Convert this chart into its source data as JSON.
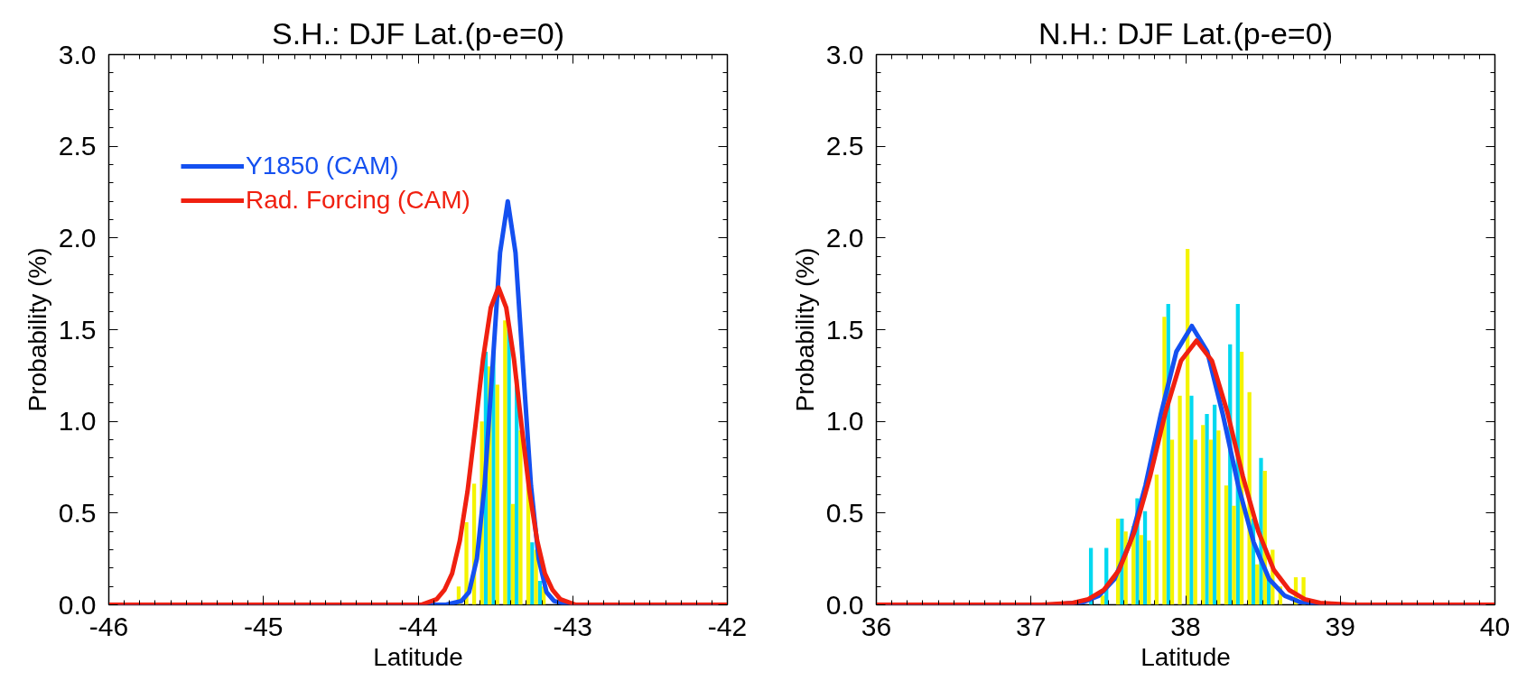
{
  "chart_data": [
    {
      "type": "histogram",
      "title": "S.H.: DJF Lat.(p-e=0)",
      "xlabel": "Latitude",
      "ylabel": "Probability (%)",
      "xlim": [
        -46,
        -42
      ],
      "ylim": [
        0,
        3
      ],
      "xticks": [
        -46,
        -45,
        -44,
        -43,
        -42
      ],
      "yticks": [
        {
          "value": 0,
          "label": "0.0"
        },
        {
          "value": 0.5,
          "label": "0.5"
        },
        {
          "value": 1,
          "label": "1.0"
        },
        {
          "value": 1.5,
          "label": "1.5"
        },
        {
          "value": 2,
          "label": "2.0"
        },
        {
          "value": 2.5,
          "label": "2.5"
        },
        {
          "value": 3,
          "label": "3.0"
        }
      ],
      "grid": false,
      "legend": "top left",
      "bins": [
        -43.775,
        -43.725,
        -43.675,
        -43.625,
        -43.575,
        -43.525,
        -43.475,
        -43.425,
        -43.375,
        -43.325,
        -43.275,
        -43.225,
        -43.175
      ],
      "series": [
        {
          "color": "#00d8f0",
          "values": [
            null,
            null,
            null,
            null,
            1.38,
            1.38,
            null,
            1.5,
            1.23,
            null,
            0.34,
            0.13
          ]
        },
        {
          "color": "#f4f400",
          "values": [
            0.1,
            0.45,
            0.66,
            1.0,
            1.3,
            1.2,
            1.55,
            0.55,
            0.95,
            0.7,
            0.3,
            0.1
          ]
        },
        {
          "type": "line",
          "name": "Y1850 (CAM)",
          "color": "#1450f0",
          "x": [
            -46,
            -43.82,
            -43.72,
            -43.67,
            -43.62,
            -43.57,
            -43.52,
            -43.47,
            -43.42,
            -43.37,
            -43.32,
            -43.27,
            -43.22,
            -43.17,
            -43.12,
            -43.02,
            -42
          ],
          "values": [
            0,
            0,
            0.02,
            0.07,
            0.25,
            0.65,
            1.28,
            1.92,
            2.2,
            1.92,
            1.28,
            0.65,
            0.25,
            0.07,
            0.02,
            0,
            0
          ]
        },
        {
          "type": "line",
          "name": "Rad. Forcing (CAM)",
          "color": "#f02010",
          "x": [
            -46,
            -43.98,
            -43.88,
            -43.83,
            -43.78,
            -43.73,
            -43.68,
            -43.63,
            -43.58,
            -43.53,
            -43.48,
            -43.43,
            -43.38,
            -43.33,
            -43.28,
            -43.23,
            -43.18,
            -43.13,
            -43.08,
            -42.98,
            -42
          ],
          "values": [
            0,
            0,
            0.03,
            0.08,
            0.17,
            0.35,
            0.62,
            0.97,
            1.34,
            1.62,
            1.73,
            1.62,
            1.34,
            0.97,
            0.62,
            0.35,
            0.17,
            0.08,
            0.03,
            0,
            0
          ]
        }
      ]
    },
    {
      "type": "histogram",
      "title": "N.H.: DJF Lat.(p-e=0)",
      "xlabel": "Latitude",
      "ylabel": "Probability (%)",
      "xlim": [
        36,
        40
      ],
      "ylim": [
        0,
        3
      ],
      "xticks": [
        36,
        37,
        38,
        39,
        40
      ],
      "yticks": [
        {
          "value": 0,
          "label": "0.0"
        },
        {
          "value": 0.5,
          "label": "0.5"
        },
        {
          "value": 1,
          "label": "1.0"
        },
        {
          "value": 1.5,
          "label": "1.5"
        },
        {
          "value": 2,
          "label": "2.0"
        },
        {
          "value": 2.5,
          "label": "2.5"
        },
        {
          "value": 3,
          "label": "3.0"
        }
      ],
      "grid": false,
      "bins": [
        37.375,
        37.425,
        37.475,
        37.525,
        37.575,
        37.625,
        37.675,
        37.725,
        37.775,
        37.825,
        37.875,
        37.925,
        37.975,
        38.025,
        38.075,
        38.125,
        38.175,
        38.225,
        38.275,
        38.325,
        38.375,
        38.425,
        38.475,
        38.525,
        38.575,
        38.625,
        38.675,
        38.725,
        38.775
      ],
      "series": [
        {
          "color": "#00d8f0",
          "values": [
            0.31,
            null,
            0.31,
            null,
            0.47,
            null,
            0.58,
            0.51,
            null,
            null,
            1.64,
            null,
            null,
            1.14,
            null,
            1.04,
            1.09,
            null,
            1.42,
            1.64,
            null,
            0.47,
            0.8,
            0.15,
            null,
            null,
            null,
            null
          ]
        },
        {
          "color": "#f4f400",
          "values": [
            0,
            0.05,
            0,
            0.47,
            0.4,
            0.43,
            0.38,
            0.35,
            0.71,
            1.57,
            0.9,
            1.14,
            1.94,
            0.9,
            0.98,
            0.9,
            0.95,
            0.65,
            0.54,
            1.38,
            1.16,
            0.22,
            0.73,
            0.3,
            0.1,
            0,
            0.15,
            0.15
          ]
        },
        {
          "type": "line",
          "color": "#1450f0",
          "x": [
            36,
            37.14,
            37.34,
            37.44,
            37.54,
            37.64,
            37.74,
            37.84,
            37.94,
            38.04,
            38.14,
            38.24,
            38.34,
            38.44,
            38.54,
            38.64,
            38.74,
            38.94,
            40
          ],
          "values": [
            0,
            0,
            0.015,
            0.05,
            0.14,
            0.34,
            0.65,
            1.04,
            1.38,
            1.52,
            1.38,
            1.04,
            0.65,
            0.34,
            0.14,
            0.05,
            0.015,
            0,
            0
          ]
        },
        {
          "type": "line",
          "color": "#f02010",
          "x": [
            36,
            37.07,
            37.27,
            37.37,
            37.47,
            37.57,
            37.67,
            37.77,
            37.87,
            37.97,
            38.07,
            38.17,
            38.27,
            38.37,
            38.47,
            38.57,
            38.67,
            38.77,
            38.87,
            39.07,
            40
          ],
          "values": [
            0,
            0,
            0.01,
            0.03,
            0.08,
            0.19,
            0.4,
            0.7,
            1.05,
            1.33,
            1.44,
            1.33,
            1.05,
            0.7,
            0.4,
            0.19,
            0.08,
            0.03,
            0.01,
            0,
            0
          ]
        }
      ]
    }
  ]
}
